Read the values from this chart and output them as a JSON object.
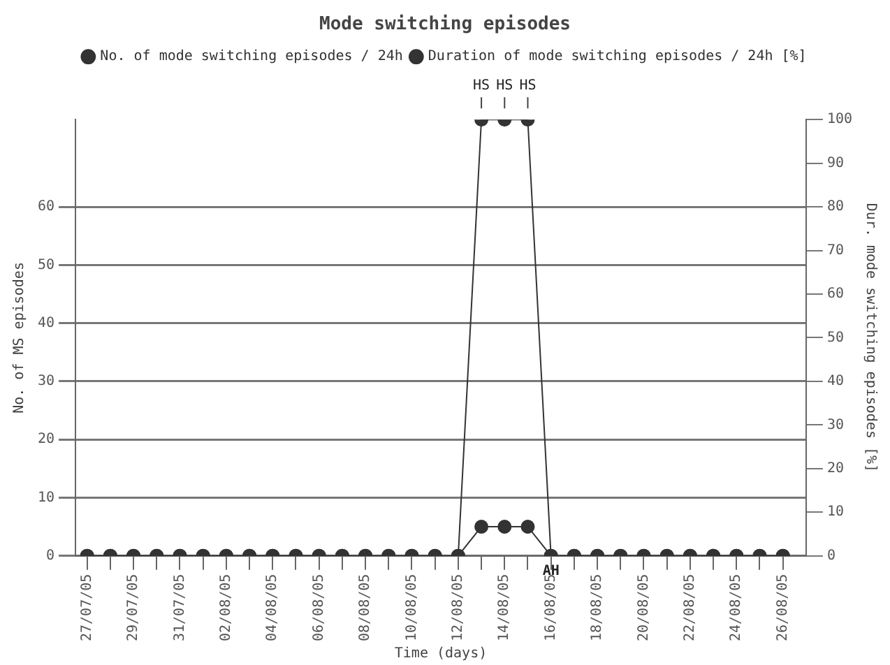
{
  "chart_data": {
    "type": "line",
    "title": "Mode switching episodes",
    "xlabel": "Time (days)",
    "ylabel": "No. of MS episodes",
    "y2label": "Dur. mode switching episodes [%]",
    "x": [
      "--07-27",
      "--07-28",
      "--07-29",
      "--07-30",
      "--07-31",
      "--08-01",
      "--08-02",
      "--08-03",
      "--08-04",
      "--08-05",
      "--08-06",
      "--08-07",
      "--08-08",
      "--08-09",
      "--08-10",
      "--08-11",
      "--08-12",
      "--08-13",
      "--08-14",
      "--08-15",
      "--08-16",
      "--08-17",
      "--08-18",
      "--08-19",
      "--08-20",
      "--08-21",
      "--08-22",
      "--08-23",
      "--08-24",
      "--08-25",
      "--08-26"
    ],
    "series": [
      {
        "name": "No. of mode switching episodes / 24h",
        "color": "#333333",
        "values": [
          0,
          0,
          0,
          0,
          0,
          0,
          0,
          0,
          0,
          0,
          0,
          0,
          0,
          0,
          0,
          0,
          0,
          5,
          5,
          5,
          0,
          0,
          0,
          0,
          0,
          0,
          0,
          0,
          0,
          0,
          0
        ]
      },
      {
        "name": "Duration of mode switching episodes / 24h [%]",
        "color": "#333333",
        "axis": "y2",
        "values": [
          0,
          0,
          0,
          0,
          0,
          0,
          0,
          0,
          0,
          0,
          0,
          0,
          0,
          0,
          0,
          0,
          0,
          100,
          100,
          100,
          0,
          0,
          0,
          0,
          0,
          0,
          0,
          0,
          0,
          0,
          0
        ]
      }
    ],
    "xlim": [
      "--07-26T12:00",
      "--08-27"
    ],
    "xticks": [
      {
        "value": "--07-27",
        "label": "27/07/05"
      },
      {
        "value": "--07-28",
        "label": null
      },
      {
        "value": "--07-29",
        "label": "29/07/05"
      },
      {
        "value": "--07-30",
        "label": null
      },
      {
        "value": "--07-31",
        "label": "31/07/05"
      },
      {
        "value": "--08-01",
        "label": null
      },
      {
        "value": "--08-02",
        "label": "02/08/05"
      },
      {
        "value": "--08-03",
        "label": null
      },
      {
        "value": "--08-04",
        "label": "04/08/05"
      },
      {
        "value": "--08-05",
        "label": null
      },
      {
        "value": "--08-06",
        "label": "06/08/05"
      },
      {
        "value": "--08-07",
        "label": null
      },
      {
        "value": "--08-08",
        "label": "08/08/05"
      },
      {
        "value": "--08-09",
        "label": null
      },
      {
        "value": "--08-10",
        "label": "10/08/05"
      },
      {
        "value": "--08-11",
        "label": null
      },
      {
        "value": "--08-12",
        "label": "12/08/05"
      },
      {
        "value": "--08-13",
        "label": null
      },
      {
        "value": "--08-14",
        "label": "14/08/05"
      },
      {
        "value": "--08-15",
        "label": null
      },
      {
        "value": "--08-16",
        "label": "16/08/05"
      },
      {
        "value": "--08-17",
        "label": null
      },
      {
        "value": "--08-18",
        "label": "18/08/05"
      },
      {
        "value": "--08-19",
        "label": null
      },
      {
        "value": "--08-20",
        "label": "20/08/05"
      },
      {
        "value": "--08-21",
        "label": null
      },
      {
        "value": "--08-22",
        "label": "22/08/05"
      },
      {
        "value": "--08-23",
        "label": null
      },
      {
        "value": "--08-24",
        "label": "24/08/05"
      },
      {
        "value": "--08-25",
        "label": null
      },
      {
        "value": "--08-26",
        "label": "26/08/05"
      }
    ],
    "ylim": [
      0,
      75
    ],
    "yticks": [
      0,
      10,
      20,
      30,
      40,
      50,
      60
    ],
    "y2lim": [
      0,
      100
    ],
    "y2ticks": [
      0,
      10,
      20,
      30,
      40,
      50,
      60,
      70,
      80,
      90,
      100
    ],
    "annotations": [
      "HS",
      "HS",
      "HS",
      {
        "text": "AH",
        "x": "--08-16",
        "y": 0
      }
    ],
    "grid": "y",
    "legend": "top",
    "marker": "circle",
    "line_style": "solid"
  }
}
